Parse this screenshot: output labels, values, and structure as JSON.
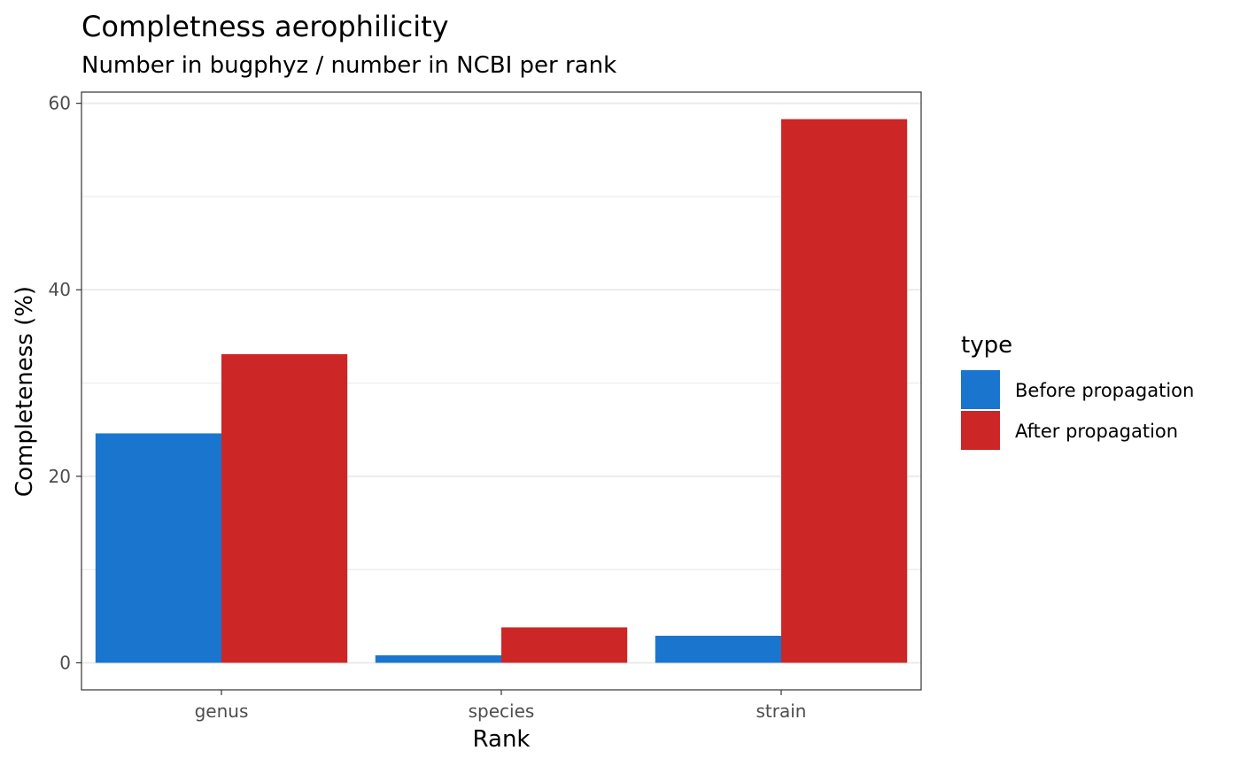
{
  "chart_data": {
    "type": "bar",
    "title": "Completness aerophilicity",
    "subtitle": "Number in bugphyz / number in NCBI per rank",
    "xlabel": "Rank",
    "ylabel": "Completeness (%)",
    "categories": [
      "genus",
      "species",
      "strain"
    ],
    "series": [
      {
        "name": "Before propagation",
        "color": "#1a75cf",
        "values": [
          24.6,
          0.8,
          2.9
        ]
      },
      {
        "name": "After propagation",
        "color": "#cd2626",
        "values": [
          33.1,
          3.8,
          58.3
        ]
      }
    ],
    "ylim": [
      -2.9,
      61.2
    ],
    "yticks": [
      0,
      20,
      40,
      60
    ],
    "yticks_minor": [
      10,
      30,
      50
    ],
    "grid": true,
    "legend": {
      "title": "type",
      "position": "right"
    }
  }
}
